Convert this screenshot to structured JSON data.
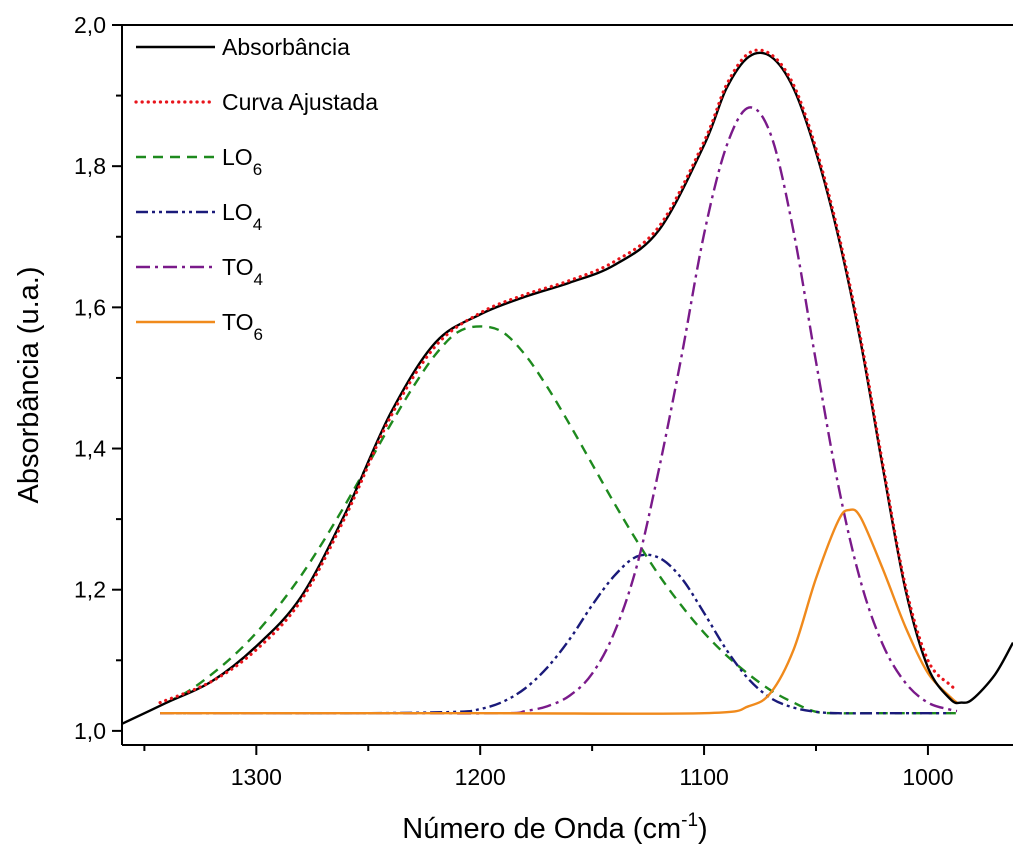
{
  "chart_data": {
    "type": "line",
    "xlabel": "Número de Onda (cm",
    "xlabel_sup": "-1",
    "xlabel_close": ")",
    "ylabel": "Absorbância (u.a.)",
    "xlim": [
      1360,
      962
    ],
    "ylim": [
      0.98,
      2.0
    ],
    "x_reversed": true,
    "grid": false,
    "legend_position": "top-left",
    "x_ticks": [
      {
        "value": 1300,
        "label": "1300"
      },
      {
        "value": 1200,
        "label": "1200"
      },
      {
        "value": 1100,
        "label": "1100"
      },
      {
        "value": 1000,
        "label": "1000"
      }
    ],
    "x_minor_ticks": [
      1350,
      1250,
      1150,
      1050
    ],
    "y_ticks": [
      {
        "value": 1.0,
        "label": "1,0"
      },
      {
        "value": 1.2,
        "label": "1,2"
      },
      {
        "value": 1.4,
        "label": "1,4"
      },
      {
        "value": 1.6,
        "label": "1,6"
      },
      {
        "value": 1.8,
        "label": "1,8"
      },
      {
        "value": 2.0,
        "label": "2,0"
      }
    ],
    "y_minor_ticks": [
      1.1,
      1.3,
      1.5,
      1.7,
      1.9
    ],
    "series": [
      {
        "name": "Absorbância",
        "sub": "",
        "color": "#000000",
        "dash": "solid",
        "x": [
          1360,
          1340,
          1320,
          1300,
          1280,
          1260,
          1240,
          1220,
          1200,
          1180,
          1160,
          1140,
          1120,
          1100,
          1090,
          1080,
          1070,
          1060,
          1050,
          1040,
          1030,
          1020,
          1010,
          1000,
          990,
          985,
          980,
          970,
          962
        ],
        "y": [
          1.01,
          1.04,
          1.07,
          1.12,
          1.19,
          1.31,
          1.45,
          1.55,
          1.59,
          1.615,
          1.635,
          1.66,
          1.71,
          1.83,
          1.91,
          1.955,
          1.955,
          1.91,
          1.82,
          1.7,
          1.55,
          1.37,
          1.2,
          1.09,
          1.045,
          1.04,
          1.045,
          1.08,
          1.125
        ]
      },
      {
        "name": "Curva Ajustada",
        "sub": "",
        "color": "#e8141b",
        "dash": "dotted",
        "x": [
          1343,
          1320,
          1300,
          1280,
          1260,
          1240,
          1220,
          1200,
          1180,
          1160,
          1140,
          1120,
          1100,
          1090,
          1080,
          1070,
          1060,
          1050,
          1040,
          1030,
          1020,
          1010,
          1000,
          990,
          987
        ],
        "y": [
          1.04,
          1.07,
          1.115,
          1.185,
          1.305,
          1.445,
          1.545,
          1.592,
          1.618,
          1.638,
          1.665,
          1.715,
          1.835,
          1.915,
          1.96,
          1.958,
          1.915,
          1.825,
          1.705,
          1.555,
          1.375,
          1.205,
          1.1,
          1.065,
          1.06
        ]
      },
      {
        "name": "LO",
        "sub": "6",
        "color": "#1e8a1e",
        "dash": "dashed",
        "x": [
          1340,
          1330,
          1320,
          1310,
          1300,
          1290,
          1280,
          1270,
          1260,
          1250,
          1240,
          1230,
          1220,
          1210,
          1200,
          1190,
          1180,
          1170,
          1160,
          1150,
          1140,
          1130,
          1120,
          1110,
          1100,
          1090,
          1080,
          1070,
          1060,
          1050,
          1040,
          1030,
          1020,
          1010,
          1000,
          990,
          985
        ],
        "y": [
          1.04,
          1.057,
          1.08,
          1.107,
          1.139,
          1.177,
          1.22,
          1.269,
          1.322,
          1.378,
          1.434,
          1.487,
          1.533,
          1.565,
          1.573,
          1.565,
          1.533,
          1.487,
          1.434,
          1.378,
          1.322,
          1.269,
          1.22,
          1.177,
          1.139,
          1.107,
          1.08,
          1.057,
          1.04,
          1.027,
          1.025,
          1.025,
          1.025,
          1.025,
          1.025,
          1.025,
          1.025
        ]
      },
      {
        "name": "LO",
        "sub": "4",
        "color": "#1a1a7a",
        "dash": "dashdotdot",
        "x": [
          1343,
          1300,
          1250,
          1210,
          1200,
          1190,
          1180,
          1170,
          1160,
          1150,
          1140,
          1130,
          1120,
          1110,
          1100,
          1090,
          1080,
          1070,
          1060,
          1050,
          1040,
          1020,
          1000,
          990
        ],
        "y": [
          1.025,
          1.025,
          1.025,
          1.027,
          1.031,
          1.041,
          1.06,
          1.09,
          1.13,
          1.178,
          1.22,
          1.247,
          1.245,
          1.216,
          1.167,
          1.115,
          1.073,
          1.046,
          1.033,
          1.027,
          1.025,
          1.025,
          1.025,
          1.025
        ]
      },
      {
        "name": "TO",
        "sub": "4",
        "color": "#7a1a8a",
        "dash": "dashdot",
        "x": [
          1343,
          1250,
          1190,
          1180,
          1170,
          1160,
          1150,
          1140,
          1130,
          1120,
          1110,
          1100,
          1090,
          1080,
          1070,
          1060,
          1050,
          1040,
          1030,
          1020,
          1010,
          1000,
          990,
          987
        ],
        "y": [
          1.025,
          1.025,
          1.025,
          1.028,
          1.035,
          1.05,
          1.081,
          1.14,
          1.234,
          1.373,
          1.532,
          1.704,
          1.828,
          1.883,
          1.843,
          1.707,
          1.523,
          1.347,
          1.211,
          1.121,
          1.068,
          1.04,
          1.03,
          1.028
        ]
      },
      {
        "name": "TO",
        "sub": "6",
        "color": "#f08a1c",
        "dash": "solid",
        "x": [
          1343,
          1200,
          1100,
          1080,
          1070,
          1060,
          1050,
          1040,
          1035,
          1030,
          1020,
          1010,
          1000,
          990,
          987
        ],
        "y": [
          1.025,
          1.025,
          1.025,
          1.035,
          1.055,
          1.115,
          1.216,
          1.298,
          1.313,
          1.302,
          1.228,
          1.147,
          1.082,
          1.048,
          1.04
        ]
      }
    ]
  }
}
